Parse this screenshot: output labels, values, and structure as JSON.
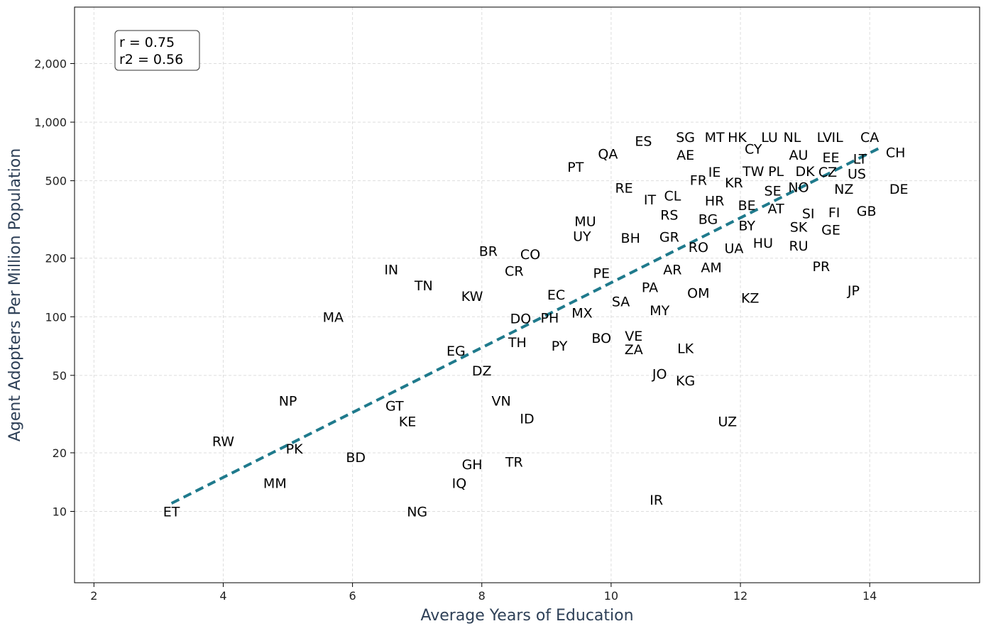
{
  "chart_data": {
    "type": "scatter",
    "title": "",
    "xlabel": "Average Years of Education",
    "ylabel": "Agent Adopters Per Million Population",
    "xlim": [
      1.7,
      15.7
    ],
    "ylim": [
      4.3,
      3900
    ],
    "yscale": "log",
    "xticks": [
      2,
      4,
      6,
      8,
      10,
      12,
      14
    ],
    "yticks": [
      10,
      20,
      50,
      100,
      200,
      500,
      1000,
      2000
    ],
    "ytick_labels": [
      "10",
      "20",
      "50",
      "100",
      "200",
      "500",
      "1,000",
      "2,000"
    ],
    "grid": true,
    "colors": {
      "trend": "#1f7a8c",
      "axis_label": "#2e4057",
      "grid": "#dddddd"
    },
    "stats": {
      "r_text": "r = 0.75",
      "r2_text": "r2 = 0.56"
    },
    "trendline": {
      "x": [
        3.2,
        14.2
      ],
      "y": [
        11,
        750
      ]
    },
    "points": [
      {
        "label": "ET",
        "x": 3.2,
        "y": 10
      },
      {
        "label": "RW",
        "x": 4.0,
        "y": 23
      },
      {
        "label": "MM",
        "x": 4.8,
        "y": 14
      },
      {
        "label": "NP",
        "x": 5.0,
        "y": 37
      },
      {
        "label": "PK",
        "x": 5.1,
        "y": 21
      },
      {
        "label": "MA",
        "x": 5.7,
        "y": 100
      },
      {
        "label": "BD",
        "x": 6.05,
        "y": 19
      },
      {
        "label": "IN",
        "x": 6.6,
        "y": 175
      },
      {
        "label": "GT",
        "x": 6.65,
        "y": 35
      },
      {
        "label": "KE",
        "x": 6.85,
        "y": 29
      },
      {
        "label": "NG",
        "x": 7.0,
        "y": 10
      },
      {
        "label": "TN",
        "x": 7.1,
        "y": 145
      },
      {
        "label": "IQ",
        "x": 7.65,
        "y": 14
      },
      {
        "label": "EG",
        "x": 7.6,
        "y": 67
      },
      {
        "label": "GH",
        "x": 7.85,
        "y": 17.5
      },
      {
        "label": "KW",
        "x": 7.85,
        "y": 128
      },
      {
        "label": "DZ",
        "x": 8.0,
        "y": 53
      },
      {
        "label": "BR",
        "x": 8.1,
        "y": 218
      },
      {
        "label": "VN",
        "x": 8.3,
        "y": 37
      },
      {
        "label": "TR",
        "x": 8.5,
        "y": 18
      },
      {
        "label": "CR",
        "x": 8.5,
        "y": 172
      },
      {
        "label": "TH",
        "x": 8.55,
        "y": 74
      },
      {
        "label": "DO",
        "x": 8.6,
        "y": 98
      },
      {
        "label": "ID",
        "x": 8.7,
        "y": 30
      },
      {
        "label": "CO",
        "x": 8.75,
        "y": 210
      },
      {
        "label": "PH",
        "x": 9.05,
        "y": 99
      },
      {
        "label": "EC",
        "x": 9.15,
        "y": 130
      },
      {
        "label": "PY",
        "x": 9.2,
        "y": 71
      },
      {
        "label": "MX",
        "x": 9.55,
        "y": 105
      },
      {
        "label": "PT",
        "x": 9.45,
        "y": 590
      },
      {
        "label": "UY",
        "x": 9.55,
        "y": 260
      },
      {
        "label": "MU",
        "x": 9.6,
        "y": 310
      },
      {
        "label": "PE",
        "x": 9.85,
        "y": 168
      },
      {
        "label": "BO",
        "x": 9.85,
        "y": 78
      },
      {
        "label": "QA",
        "x": 9.95,
        "y": 690
      },
      {
        "label": "SA",
        "x": 10.15,
        "y": 120
      },
      {
        "label": "RE",
        "x": 10.2,
        "y": 460
      },
      {
        "label": "BH",
        "x": 10.3,
        "y": 255
      },
      {
        "label": "VE",
        "x": 10.35,
        "y": 80
      },
      {
        "label": "ZA",
        "x": 10.35,
        "y": 68
      },
      {
        "label": "ES",
        "x": 10.5,
        "y": 800
      },
      {
        "label": "PA",
        "x": 10.6,
        "y": 142
      },
      {
        "label": "IT",
        "x": 10.6,
        "y": 400
      },
      {
        "label": "JO",
        "x": 10.75,
        "y": 51
      },
      {
        "label": "IR",
        "x": 10.7,
        "y": 11.5
      },
      {
        "label": "MY",
        "x": 10.75,
        "y": 108
      },
      {
        "label": "GR",
        "x": 10.9,
        "y": 258
      },
      {
        "label": "AR",
        "x": 10.95,
        "y": 175
      },
      {
        "label": "CL",
        "x": 10.95,
        "y": 420
      },
      {
        "label": "RS",
        "x": 10.9,
        "y": 335
      },
      {
        "label": "SG",
        "x": 11.15,
        "y": 840
      },
      {
        "label": "AE",
        "x": 11.15,
        "y": 680
      },
      {
        "label": "KG",
        "x": 11.15,
        "y": 47
      },
      {
        "label": "LK",
        "x": 11.15,
        "y": 69
      },
      {
        "label": "RO",
        "x": 11.35,
        "y": 228
      },
      {
        "label": "OM",
        "x": 11.35,
        "y": 133
      },
      {
        "label": "FR",
        "x": 11.35,
        "y": 505
      },
      {
        "label": "BG",
        "x": 11.5,
        "y": 318
      },
      {
        "label": "AM",
        "x": 11.55,
        "y": 180
      },
      {
        "label": "MT",
        "x": 11.6,
        "y": 840
      },
      {
        "label": "HR",
        "x": 11.6,
        "y": 395
      },
      {
        "label": "IE",
        "x": 11.6,
        "y": 555
      },
      {
        "label": "KR",
        "x": 11.9,
        "y": 490
      },
      {
        "label": "UA",
        "x": 11.9,
        "y": 225
      },
      {
        "label": "UZ",
        "x": 11.8,
        "y": 29
      },
      {
        "label": "HK",
        "x": 11.95,
        "y": 840
      },
      {
        "label": "BE",
        "x": 12.1,
        "y": 375
      },
      {
        "label": "BY",
        "x": 12.1,
        "y": 295
      },
      {
        "label": "CY",
        "x": 12.2,
        "y": 730
      },
      {
        "label": "TW",
        "x": 12.2,
        "y": 560
      },
      {
        "label": "KZ",
        "x": 12.15,
        "y": 125
      },
      {
        "label": "HU",
        "x": 12.35,
        "y": 240
      },
      {
        "label": "PL",
        "x": 12.55,
        "y": 560
      },
      {
        "label": "SE",
        "x": 12.5,
        "y": 445
      },
      {
        "label": "LU",
        "x": 12.45,
        "y": 840
      },
      {
        "label": "AT",
        "x": 12.55,
        "y": 360
      },
      {
        "label": "NL",
        "x": 12.8,
        "y": 840
      },
      {
        "label": "AU",
        "x": 12.9,
        "y": 680
      },
      {
        "label": "NO",
        "x": 12.9,
        "y": 465
      },
      {
        "label": "SK",
        "x": 12.9,
        "y": 290
      },
      {
        "label": "RU",
        "x": 12.9,
        "y": 232
      },
      {
        "label": "DK",
        "x": 13.0,
        "y": 560
      },
      {
        "label": "SI",
        "x": 13.05,
        "y": 340
      },
      {
        "label": "PR",
        "x": 13.25,
        "y": 182
      },
      {
        "label": "CZ",
        "x": 13.35,
        "y": 555
      },
      {
        "label": "LV",
        "x": 13.3,
        "y": 840
      },
      {
        "label": "EE",
        "x": 13.4,
        "y": 660
      },
      {
        "label": "GE",
        "x": 13.4,
        "y": 280
      },
      {
        "label": "IL",
        "x": 13.5,
        "y": 840
      },
      {
        "label": "FI",
        "x": 13.45,
        "y": 345
      },
      {
        "label": "NZ",
        "x": 13.6,
        "y": 455
      },
      {
        "label": "JP",
        "x": 13.75,
        "y": 137
      },
      {
        "label": "US",
        "x": 13.8,
        "y": 545
      },
      {
        "label": "LT",
        "x": 13.85,
        "y": 650
      },
      {
        "label": "GB",
        "x": 13.95,
        "y": 350
      },
      {
        "label": "CA",
        "x": 14.0,
        "y": 840
      },
      {
        "label": "CH",
        "x": 14.4,
        "y": 700
      },
      {
        "label": "DE",
        "x": 14.45,
        "y": 455
      }
    ]
  }
}
